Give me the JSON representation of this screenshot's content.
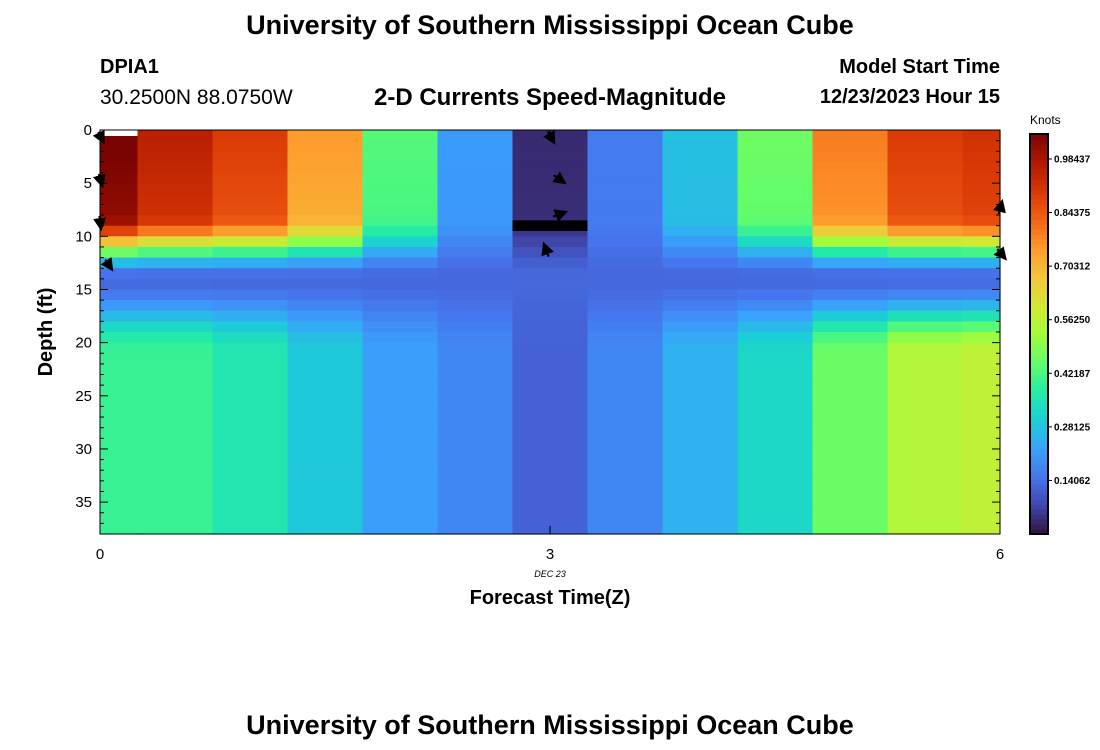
{
  "header": {
    "title": "University of Southern Mississippi Ocean Cube",
    "station": "DPIA1",
    "coords": "30.2500N  88.0750W",
    "subtitle": "2-D Currents Speed-Magnitude",
    "model_start_label": "Model Start Time",
    "model_start_value": "12/23/2023 Hour 15"
  },
  "footer": {
    "title": "University of Southern Mississippi Ocean Cube"
  },
  "chart_data": {
    "type": "heatmap",
    "title": "2-D Currents Speed-Magnitude",
    "xlabel": "Forecast Time(Z)",
    "ylabel": "Depth (ft)",
    "x_date_label": "DEC 23",
    "x_ticks": [
      0,
      3,
      6
    ],
    "y_ticks": [
      0,
      5,
      10,
      15,
      20,
      25,
      30,
      35
    ],
    "xlim": [
      0,
      6
    ],
    "ylim": [
      0,
      38
    ],
    "y_inverted": true,
    "colorbar": {
      "title": "Knots",
      "tick_values": [
        0.14062,
        0.28125,
        0.42187,
        0.5625,
        0.70312,
        0.84375,
        0.98437
      ],
      "tick_labels": [
        "0.14062",
        "0.28125",
        "0.42187",
        "0.56250",
        "0.70312",
        "0.84375",
        "0.98437"
      ],
      "range": [
        0.0,
        1.05
      ],
      "colormap": [
        "#30123b",
        "#4145ab",
        "#4675ed",
        "#39a2fc",
        "#1bcfd4",
        "#24eca6",
        "#61fc6c",
        "#a4fc3b",
        "#d1e834",
        "#f3c63a",
        "#fe9b2d",
        "#f36315",
        "#d93806",
        "#b11901",
        "#7a0402"
      ]
    },
    "columns": [
      {
        "x_start": 0.0,
        "x_end": 0.25,
        "surface": 1.02,
        "bottom": 0.4
      },
      {
        "x_start": 0.25,
        "x_end": 0.75,
        "surface": 0.92,
        "bottom": 0.4
      },
      {
        "x_start": 0.75,
        "x_end": 1.25,
        "surface": 0.86,
        "bottom": 0.36
      },
      {
        "x_start": 1.25,
        "x_end": 1.75,
        "surface": 0.72,
        "bottom": 0.29
      },
      {
        "x_start": 1.75,
        "x_end": 2.25,
        "surface": 0.42,
        "bottom": 0.22
      },
      {
        "x_start": 2.25,
        "x_end": 2.75,
        "surface": 0.21,
        "bottom": 0.18
      },
      {
        "x_start": 2.75,
        "x_end": 3.25,
        "surface": 0.04,
        "bottom": 0.12
      },
      {
        "x_start": 3.25,
        "x_end": 3.75,
        "surface": 0.16,
        "bottom": 0.18
      },
      {
        "x_start": 3.75,
        "x_end": 4.25,
        "surface": 0.27,
        "bottom": 0.25
      },
      {
        "x_start": 4.25,
        "x_end": 4.75,
        "surface": 0.45,
        "bottom": 0.32
      },
      {
        "x_start": 4.75,
        "x_end": 5.25,
        "surface": 0.76,
        "bottom": 0.46
      },
      {
        "x_start": 5.25,
        "x_end": 5.75,
        "surface": 0.86,
        "bottom": 0.55
      },
      {
        "x_start": 5.75,
        "x_end": 6.0,
        "surface": 0.88,
        "bottom": 0.57
      }
    ],
    "vectors": [
      {
        "x": 0.0,
        "depth": 0.5,
        "u": 0.3,
        "v": 0.6
      },
      {
        "x": 0.0,
        "depth": 4.5,
        "u": 0.2,
        "v": 0.7
      },
      {
        "x": 0.0,
        "depth": 8.5,
        "u": 0.1,
        "v": 0.8
      },
      {
        "x": 0.05,
        "depth": 12.5,
        "u": 0.4,
        "v": 0.6
      },
      {
        "x": 3.0,
        "depth": 0.5,
        "u": 0.4,
        "v": 0.7
      },
      {
        "x": 3.05,
        "depth": 4.5,
        "u": 0.7,
        "v": 0.5
      },
      {
        "x": 3.05,
        "depth": 8.0,
        "u": 0.8,
        "v": -0.3
      },
      {
        "x": 2.98,
        "depth": 11.5,
        "u": -0.3,
        "v": -0.8
      },
      {
        "x": 6.0,
        "depth": 7.5,
        "u": 0.2,
        "v": -0.8
      },
      {
        "x": 6.0,
        "depth": 11.5,
        "u": 0.5,
        "v": 0.6
      }
    ]
  }
}
